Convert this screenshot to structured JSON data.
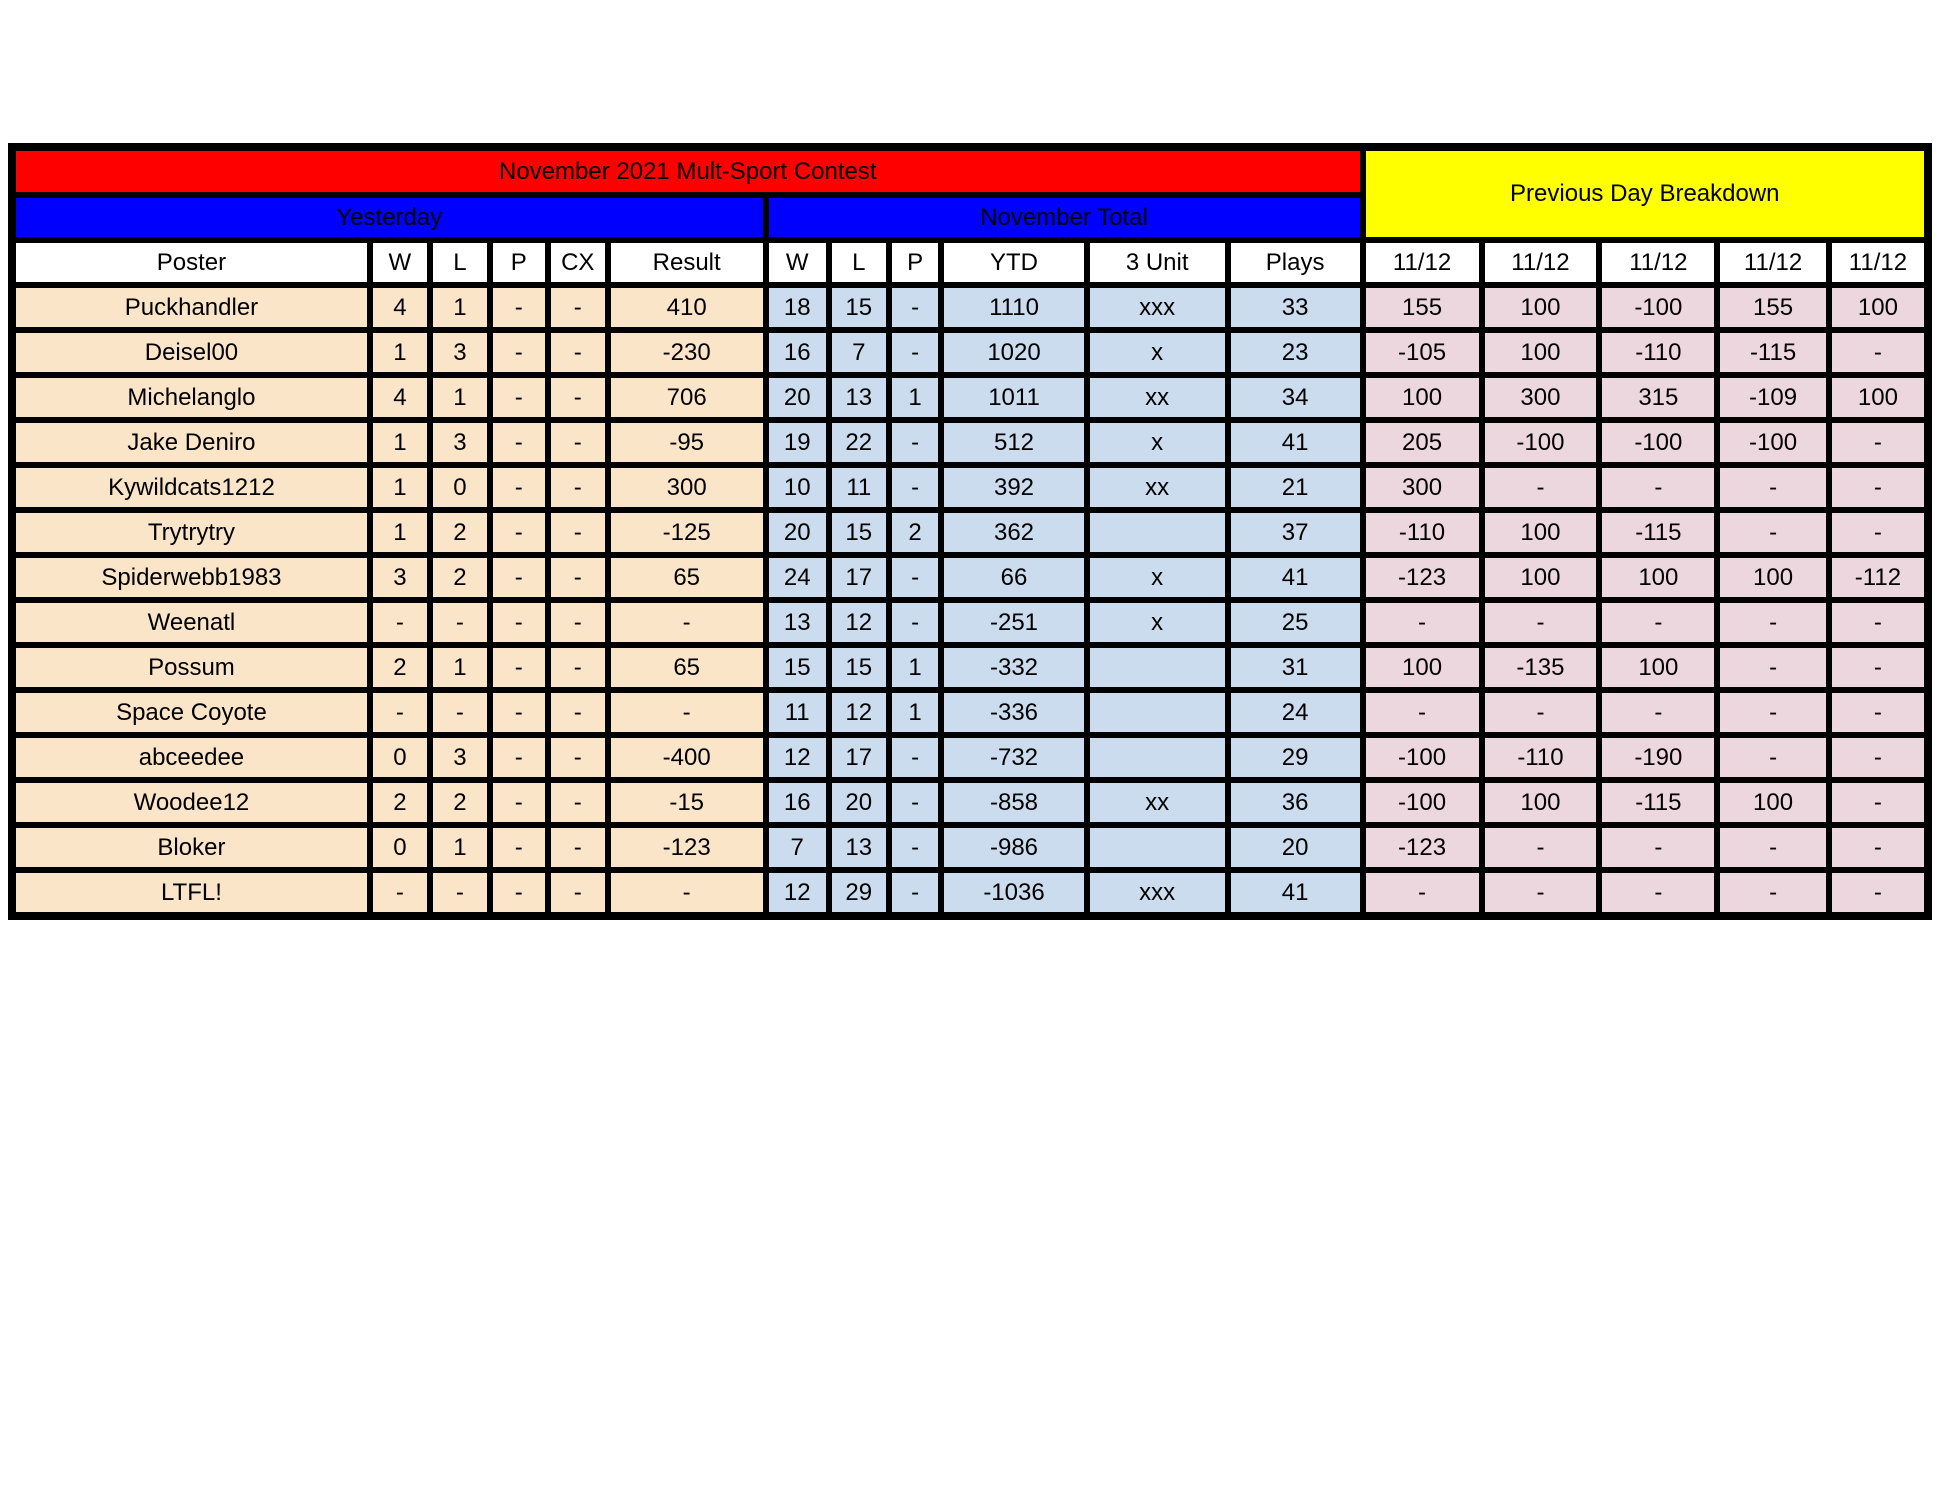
{
  "table": {
    "title": "November 2021 Mult-Sport Contest",
    "section_headers": {
      "yesterday": "Yesterday",
      "november_total": "November Total",
      "previous_day_breakdown": "Previous Day Breakdown"
    },
    "columns": [
      "Poster",
      "W",
      "L",
      "P",
      "CX",
      "Result",
      "W",
      "L",
      "P",
      "YTD",
      "3 Unit",
      "Plays",
      "11/12",
      "11/12",
      "11/12",
      "11/12",
      "11/12"
    ],
    "rows": [
      {
        "poster": "Puckhandler",
        "yesterday": [
          "4",
          "1",
          "-",
          "-",
          "410"
        ],
        "november": [
          "18",
          "15",
          "-",
          "1110",
          "xxx",
          "33"
        ],
        "previous": [
          "155",
          "100",
          "-100",
          "155",
          "100"
        ]
      },
      {
        "poster": "Deisel00",
        "yesterday": [
          "1",
          "3",
          "-",
          "-",
          "-230"
        ],
        "november": [
          "16",
          "7",
          "-",
          "1020",
          "x",
          "23"
        ],
        "previous": [
          "-105",
          "100",
          "-110",
          "-115",
          "-"
        ]
      },
      {
        "poster": "Michelanglo",
        "yesterday": [
          "4",
          "1",
          "-",
          "-",
          "706"
        ],
        "november": [
          "20",
          "13",
          "1",
          "1011",
          "xx",
          "34"
        ],
        "previous": [
          "100",
          "300",
          "315",
          "-109",
          "100"
        ]
      },
      {
        "poster": "Jake Deniro",
        "yesterday": [
          "1",
          "3",
          "-",
          "-",
          "-95"
        ],
        "november": [
          "19",
          "22",
          "-",
          "512",
          "x",
          "41"
        ],
        "previous": [
          "205",
          "-100",
          "-100",
          "-100",
          "-"
        ]
      },
      {
        "poster": "Kywildcats1212",
        "yesterday": [
          "1",
          "0",
          "-",
          "-",
          "300"
        ],
        "november": [
          "10",
          "11",
          "-",
          "392",
          "xx",
          "21"
        ],
        "previous": [
          "300",
          "-",
          "-",
          "-",
          "-"
        ]
      },
      {
        "poster": "Trytrytry",
        "yesterday": [
          "1",
          "2",
          "-",
          "-",
          "-125"
        ],
        "november": [
          "20",
          "15",
          "2",
          "362",
          "",
          "37"
        ],
        "previous": [
          "-110",
          "100",
          "-115",
          "-",
          "-"
        ]
      },
      {
        "poster": "Spiderwebb1983",
        "yesterday": [
          "3",
          "2",
          "-",
          "-",
          "65"
        ],
        "november": [
          "24",
          "17",
          "-",
          "66",
          "x",
          "41"
        ],
        "previous": [
          "-123",
          "100",
          "100",
          "100",
          "-112"
        ]
      },
      {
        "poster": "Weenatl",
        "yesterday": [
          "-",
          "-",
          "-",
          "-",
          "-"
        ],
        "november": [
          "13",
          "12",
          "-",
          "-251",
          "x",
          "25"
        ],
        "previous": [
          "-",
          "-",
          "-",
          "-",
          "-"
        ]
      },
      {
        "poster": "Possum",
        "yesterday": [
          "2",
          "1",
          "-",
          "-",
          "65"
        ],
        "november": [
          "15",
          "15",
          "1",
          "-332",
          "",
          "31"
        ],
        "previous": [
          "100",
          "-135",
          "100",
          "-",
          "-"
        ]
      },
      {
        "poster": "Space Coyote",
        "yesterday": [
          "-",
          "-",
          "-",
          "-",
          "-"
        ],
        "november": [
          "11",
          "12",
          "1",
          "-336",
          "",
          "24"
        ],
        "previous": [
          "-",
          "-",
          "-",
          "-",
          "-"
        ]
      },
      {
        "poster": "abceedee",
        "yesterday": [
          "0",
          "3",
          "-",
          "-",
          "-400"
        ],
        "november": [
          "12",
          "17",
          "-",
          "-732",
          "",
          "29"
        ],
        "previous": [
          "-100",
          "-110",
          "-190",
          "-",
          "-"
        ]
      },
      {
        "poster": "Woodee12",
        "yesterday": [
          "2",
          "2",
          "-",
          "-",
          "-15"
        ],
        "november": [
          "16",
          "20",
          "-",
          "-858",
          "xx",
          "36"
        ],
        "previous": [
          "-100",
          "100",
          "-115",
          "100",
          "-"
        ]
      },
      {
        "poster": "Bloker",
        "yesterday": [
          "0",
          "1",
          "-",
          "-",
          "-123"
        ],
        "november": [
          "7",
          "13",
          "-",
          "-986",
          "",
          "20"
        ],
        "previous": [
          "-123",
          "-",
          "-",
          "-",
          "-"
        ]
      },
      {
        "poster": "LTFL!",
        "yesterday": [
          "-",
          "-",
          "-",
          "-",
          "-"
        ],
        "november": [
          "12",
          "29",
          "-",
          "-1036",
          "xxx",
          "41"
        ],
        "previous": [
          "-",
          "-",
          "-",
          "-",
          "-"
        ]
      }
    ],
    "colors": {
      "title_band": "#ff0000",
      "section_band": "#0000ff",
      "previous_day_band": "#ffff00",
      "yesterday_cells": "#fbe5c9",
      "november_cells": "#cbdcee",
      "previous_day_cells": "#edd7de",
      "border": "#000000"
    }
  }
}
